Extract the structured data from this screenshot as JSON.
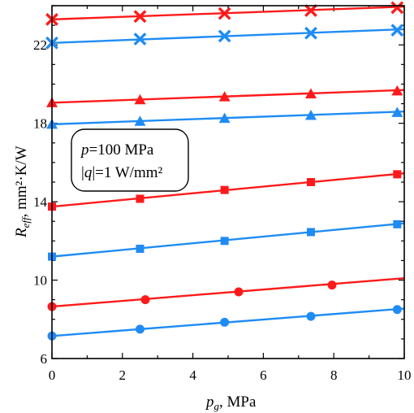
{
  "colors": {
    "red": "#ff1a1a",
    "blue": "#1f8cf5",
    "axis": "#000000"
  },
  "annotation": {
    "line1_var": "p",
    "line1_rest": "=100 MPa",
    "line2_bar1": "|",
    "line2_var": "q",
    "line2_bar2": "|",
    "line2_rest": "=1 W/mm²"
  },
  "axes": {
    "xlabel_main": "p",
    "xlabel_sub": "g",
    "xlabel_rest": ", MPa",
    "ylabel_main": "R",
    "ylabel_sub": "eff",
    "ylabel_rest": ", mm²·K/W"
  },
  "chart_data": {
    "type": "line",
    "xlim": [
      0,
      10
    ],
    "ylim": [
      6,
      24
    ],
    "xticks": [
      0,
      2,
      4,
      6,
      8,
      10
    ],
    "yticks": [
      6,
      10,
      14,
      18,
      22
    ],
    "xlabel": "p_g, MPa",
    "ylabel": "R_eff, mm²·K/W",
    "grid": false,
    "series": [
      {
        "color": "red",
        "marker": "x",
        "line": [
          [
            0,
            23.3
          ],
          [
            10,
            23.95
          ]
        ],
        "points": [
          [
            0,
            23.3
          ],
          [
            2.5,
            23.45
          ],
          [
            4.9,
            23.6
          ],
          [
            7.35,
            23.75
          ],
          [
            9.8,
            23.9
          ]
        ]
      },
      {
        "color": "blue",
        "marker": "x",
        "line": [
          [
            0,
            22.1
          ],
          [
            10,
            22.8
          ]
        ],
        "points": [
          [
            0,
            22.1
          ],
          [
            2.5,
            22.3
          ],
          [
            4.9,
            22.45
          ],
          [
            7.35,
            22.6
          ],
          [
            9.8,
            22.75
          ]
        ]
      },
      {
        "color": "red",
        "marker": "triangle",
        "line": [
          [
            0,
            19.05
          ],
          [
            10,
            19.7
          ]
        ],
        "points": [
          [
            0,
            19.05
          ],
          [
            2.5,
            19.2
          ],
          [
            4.9,
            19.35
          ],
          [
            7.35,
            19.5
          ],
          [
            9.8,
            19.65
          ]
        ]
      },
      {
        "color": "blue",
        "marker": "triangle",
        "line": [
          [
            0,
            17.95
          ],
          [
            10,
            18.6
          ]
        ],
        "points": [
          [
            0,
            17.95
          ],
          [
            2.5,
            18.1
          ],
          [
            4.9,
            18.25
          ],
          [
            7.35,
            18.4
          ],
          [
            9.8,
            18.55
          ]
        ]
      },
      {
        "color": "red",
        "marker": "square",
        "line": [
          [
            0,
            13.75
          ],
          [
            10,
            15.45
          ]
        ],
        "points": [
          [
            0,
            13.75
          ],
          [
            2.5,
            14.15
          ],
          [
            4.9,
            14.6
          ],
          [
            7.35,
            15.0
          ],
          [
            9.8,
            15.4
          ]
        ]
      },
      {
        "color": "blue",
        "marker": "square",
        "line": [
          [
            0,
            11.2
          ],
          [
            10,
            12.9
          ]
        ],
        "points": [
          [
            0,
            11.2
          ],
          [
            2.5,
            11.6
          ],
          [
            4.9,
            12.0
          ],
          [
            7.35,
            12.45
          ],
          [
            9.8,
            12.85
          ]
        ]
      },
      {
        "color": "red",
        "marker": "circle",
        "line": [
          [
            0,
            8.65
          ],
          [
            10,
            10.1
          ]
        ],
        "points": [
          [
            0,
            8.65
          ],
          [
            2.65,
            9.0
          ],
          [
            5.3,
            9.4
          ],
          [
            7.95,
            9.75
          ]
        ]
      },
      {
        "color": "blue",
        "marker": "circle",
        "line": [
          [
            0,
            7.15
          ],
          [
            10,
            8.55
          ]
        ],
        "points": [
          [
            0,
            7.15
          ],
          [
            2.5,
            7.5
          ],
          [
            4.9,
            7.85
          ],
          [
            7.35,
            8.15
          ],
          [
            9.8,
            8.5
          ]
        ]
      }
    ]
  }
}
